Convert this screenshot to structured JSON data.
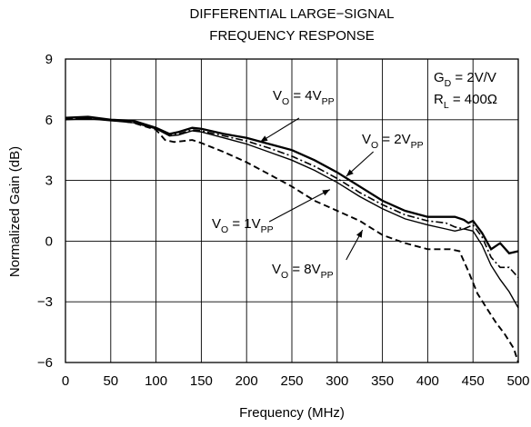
{
  "chart_data": {
    "type": "line",
    "title_lines": [
      "DIFFERENTIAL LARGE−SIGNAL",
      "FREQUENCY RESPONSE"
    ],
    "xlabel": "Frequency (MHz)",
    "ylabel": "Normalized Gain (dB)",
    "xlim": [
      0,
      500
    ],
    "ylim": [
      -6,
      9
    ],
    "x_ticks": [
      "0",
      "50",
      "100",
      "150",
      "200",
      "250",
      "300",
      "350",
      "400",
      "450",
      "500"
    ],
    "y_ticks": [
      "−6",
      "−3",
      "0",
      "3",
      "6",
      "9"
    ],
    "grid": true,
    "conditions": [
      {
        "main": "G",
        "sub": "D",
        "rest": " = 2V/V"
      },
      {
        "main": "R",
        "sub": "L",
        "rest": " = 400Ω"
      }
    ],
    "series": [
      {
        "name": "VO = 4VPP",
        "label": {
          "pre": "V",
          "sub1": "O",
          "mid": " = 4V",
          "sub2": "PP"
        },
        "style": "solid-thick",
        "x": [
          0,
          25,
          50,
          75,
          100,
          115,
          125,
          140,
          150,
          175,
          200,
          225,
          250,
          275,
          300,
          325,
          350,
          375,
          400,
          420,
          430,
          440,
          445,
          450,
          460,
          470,
          480,
          490,
          500
        ],
        "y": [
          6.1,
          6.15,
          6.0,
          5.95,
          5.6,
          5.3,
          5.4,
          5.6,
          5.55,
          5.3,
          5.1,
          4.8,
          4.5,
          4.0,
          3.4,
          2.7,
          2.0,
          1.5,
          1.2,
          1.2,
          1.2,
          1.05,
          0.9,
          1.0,
          0.4,
          -0.4,
          -0.1,
          -0.6,
          -0.5
        ]
      },
      {
        "name": "VO = 2VPP",
        "label": {
          "pre": "V",
          "sub1": "O",
          "mid": " = 2V",
          "sub2": "PP"
        },
        "style": "dashdot",
        "x": [
          0,
          25,
          50,
          75,
          100,
          115,
          125,
          140,
          150,
          175,
          200,
          225,
          250,
          275,
          300,
          325,
          350,
          375,
          400,
          420,
          430,
          440,
          450,
          460,
          470,
          480,
          490,
          500
        ],
        "y": [
          6.05,
          6.1,
          6.0,
          5.9,
          5.6,
          5.25,
          5.3,
          5.5,
          5.45,
          5.2,
          4.95,
          4.6,
          4.2,
          3.7,
          3.1,
          2.4,
          1.8,
          1.3,
          1.0,
          0.9,
          0.7,
          0.6,
          0.8,
          0.2,
          -0.8,
          -1.3,
          -1.3,
          -1.8
        ]
      },
      {
        "name": "VO = 1VPP",
        "label": {
          "pre": "V",
          "sub1": "O",
          "mid": " = 1V",
          "sub2": "PP"
        },
        "style": "solid",
        "x": [
          0,
          25,
          50,
          75,
          100,
          115,
          125,
          140,
          150,
          175,
          200,
          225,
          250,
          275,
          300,
          325,
          350,
          375,
          400,
          420,
          430,
          440,
          450,
          460,
          470,
          480,
          490,
          500
        ],
        "y": [
          6.0,
          6.05,
          5.95,
          5.85,
          5.55,
          5.2,
          5.25,
          5.45,
          5.4,
          5.1,
          4.8,
          4.4,
          4.0,
          3.5,
          2.9,
          2.2,
          1.6,
          1.1,
          0.8,
          0.6,
          0.5,
          0.6,
          0.5,
          -0.2,
          -1.2,
          -1.9,
          -2.5,
          -3.3
        ]
      },
      {
        "name": "VO = 8VPP",
        "label": {
          "pre": "V",
          "sub1": "O",
          "mid": " = 8V",
          "sub2": "PP"
        },
        "style": "dashed",
        "x": [
          0,
          25,
          50,
          75,
          100,
          110,
          120,
          140,
          150,
          175,
          200,
          225,
          250,
          275,
          300,
          325,
          350,
          375,
          400,
          425,
          435,
          445,
          455,
          465,
          475,
          485,
          495,
          500
        ],
        "y": [
          6.1,
          6.1,
          6.0,
          5.85,
          5.5,
          5.0,
          4.9,
          5.0,
          4.85,
          4.4,
          3.9,
          3.3,
          2.7,
          2.0,
          1.5,
          1.0,
          0.3,
          -0.1,
          -0.4,
          -0.4,
          -0.5,
          -1.5,
          -2.6,
          -3.3,
          -4.0,
          -4.6,
          -5.3,
          -6.0
        ]
      }
    ]
  }
}
